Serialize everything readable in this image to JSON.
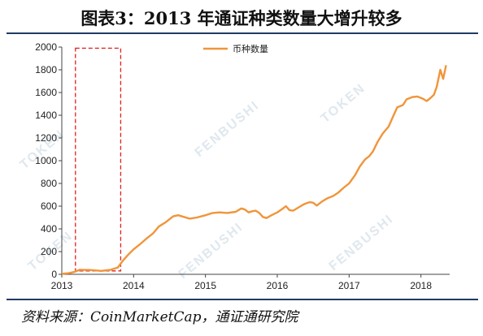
{
  "title": "图表3：2013 年通证种类数量大增升较多",
  "source": "资料来源：CoinMarketCap，通证通研究院",
  "watermarks": [
    "TOKEN",
    "FENBUSHI",
    "TOKEN",
    "FENBUSHI",
    "TOKEN",
    "FENBUSHI"
  ],
  "chart_data": {
    "type": "line",
    "title": "",
    "xlabel": "",
    "ylabel": "",
    "ylim": [
      0,
      2000
    ],
    "xlim": [
      2013.0,
      2018.4
    ],
    "y_ticks": [
      0,
      200,
      400,
      600,
      800,
      1000,
      1200,
      1400,
      1600,
      1800,
      2000
    ],
    "x_ticks": [
      {
        "value": 2013,
        "label": "2013"
      },
      {
        "value": 2014,
        "label": "2014"
      },
      {
        "value": 2015,
        "label": "2015"
      },
      {
        "value": 2016,
        "label": "2016"
      },
      {
        "value": 2017,
        "label": "2017"
      },
      {
        "value": 2018,
        "label": "2018"
      }
    ],
    "legend": "top-center",
    "color": "#f0953a",
    "highlight_box": {
      "x0": 2013.19,
      "x1": 2013.82,
      "y0": 30,
      "y1": 1990,
      "color": "#e02020"
    },
    "series": [
      {
        "name": "币种数量",
        "points": [
          [
            2013.0,
            5
          ],
          [
            2013.1,
            10
          ],
          [
            2013.18,
            22
          ],
          [
            2013.25,
            40
          ],
          [
            2013.4,
            38
          ],
          [
            2013.55,
            30
          ],
          [
            2013.68,
            40
          ],
          [
            2013.78,
            60
          ],
          [
            2013.85,
            120
          ],
          [
            2013.92,
            170
          ],
          [
            2014.0,
            220
          ],
          [
            2014.08,
            260
          ],
          [
            2014.17,
            310
          ],
          [
            2014.27,
            360
          ],
          [
            2014.35,
            420
          ],
          [
            2014.45,
            460
          ],
          [
            2014.55,
            510
          ],
          [
            2014.62,
            520
          ],
          [
            2014.7,
            505
          ],
          [
            2014.78,
            490
          ],
          [
            2014.88,
            500
          ],
          [
            2015.0,
            520
          ],
          [
            2015.1,
            540
          ],
          [
            2015.2,
            545
          ],
          [
            2015.3,
            540
          ],
          [
            2015.42,
            550
          ],
          [
            2015.5,
            580
          ],
          [
            2015.55,
            570
          ],
          [
            2015.6,
            545
          ],
          [
            2015.65,
            555
          ],
          [
            2015.7,
            560
          ],
          [
            2015.75,
            540
          ],
          [
            2015.8,
            505
          ],
          [
            2015.85,
            495
          ],
          [
            2015.92,
            520
          ],
          [
            2016.0,
            545
          ],
          [
            2016.08,
            580
          ],
          [
            2016.12,
            600
          ],
          [
            2016.17,
            565
          ],
          [
            2016.22,
            560
          ],
          [
            2016.3,
            590
          ],
          [
            2016.38,
            620
          ],
          [
            2016.45,
            635
          ],
          [
            2016.5,
            630
          ],
          [
            2016.55,
            605
          ],
          [
            2016.62,
            640
          ],
          [
            2016.7,
            670
          ],
          [
            2016.78,
            690
          ],
          [
            2016.85,
            720
          ],
          [
            2016.92,
            760
          ],
          [
            2017.0,
            800
          ],
          [
            2017.08,
            870
          ],
          [
            2017.15,
            950
          ],
          [
            2017.22,
            1010
          ],
          [
            2017.28,
            1040
          ],
          [
            2017.33,
            1080
          ],
          [
            2017.4,
            1170
          ],
          [
            2017.47,
            1240
          ],
          [
            2017.55,
            1300
          ],
          [
            2017.62,
            1400
          ],
          [
            2017.67,
            1470
          ],
          [
            2017.75,
            1490
          ],
          [
            2017.8,
            1540
          ],
          [
            2017.88,
            1560
          ],
          [
            2017.95,
            1565
          ],
          [
            2018.03,
            1545
          ],
          [
            2018.08,
            1525
          ],
          [
            2018.13,
            1550
          ],
          [
            2018.18,
            1580
          ],
          [
            2018.22,
            1650
          ],
          [
            2018.27,
            1800
          ],
          [
            2018.31,
            1720
          ],
          [
            2018.35,
            1840
          ]
        ]
      }
    ]
  }
}
